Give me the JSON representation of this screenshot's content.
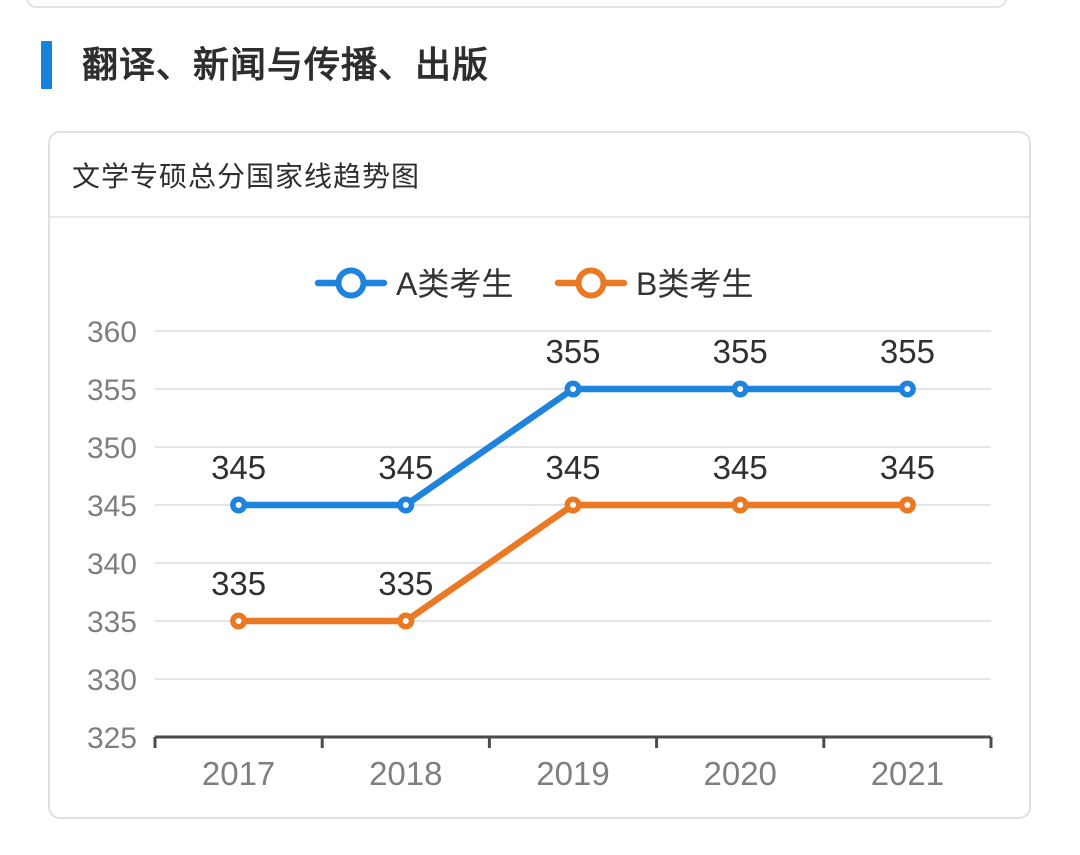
{
  "page": {
    "section_title": "翻译、新闻与传播、出版"
  },
  "card": {
    "title": "文学专硕总分国家线趋势图"
  },
  "chart_data": {
    "type": "line",
    "title": "文学专硕总分国家线趋势图",
    "categories": [
      "2017",
      "2018",
      "2019",
      "2020",
      "2021"
    ],
    "series": [
      {
        "name": "A类考生",
        "color": "#1E83DC",
        "values": [
          345,
          345,
          355,
          355,
          355
        ]
      },
      {
        "name": "B类考生",
        "color": "#EB7823",
        "values": [
          335,
          335,
          345,
          345,
          345
        ]
      }
    ],
    "xlabel": "",
    "ylabel": "",
    "ylim": [
      325,
      360
    ],
    "y_ticks": [
      325,
      330,
      335,
      340,
      345,
      350,
      355,
      360
    ],
    "grid": true,
    "legend_position": "top-center",
    "data_labels": true,
    "marker": "hollow-circle",
    "colors": {
      "grid_line": "#E2E6EA",
      "axis_line": "#4C4C4C",
      "tick_label": "#7F7F7F",
      "data_label": "#303030",
      "legend_text": "#333333",
      "marker_fill": "#FFFFFF"
    }
  },
  "style": {
    "accent_color": "#1583DB",
    "card_border": "#E0E0E0"
  }
}
